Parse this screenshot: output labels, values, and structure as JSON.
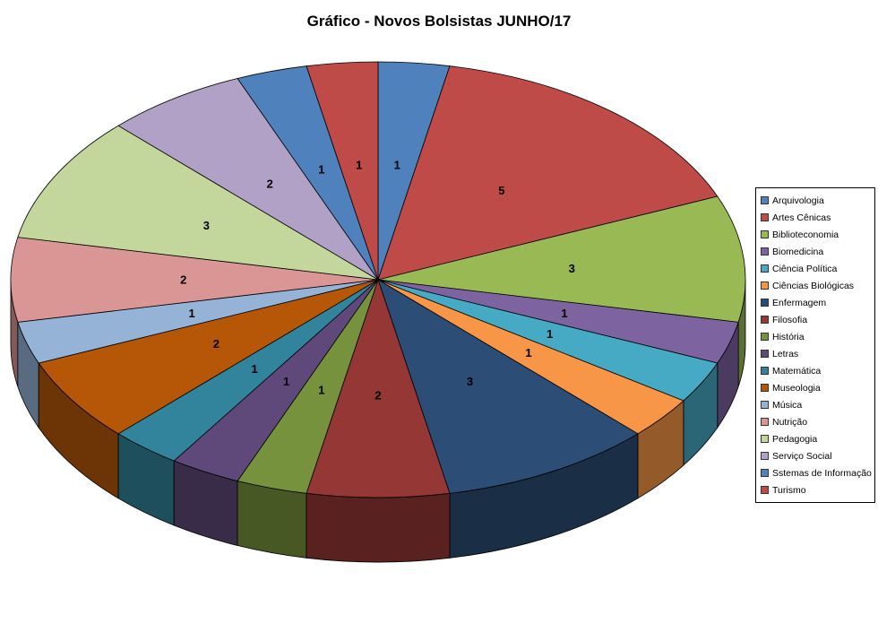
{
  "title": "Gráfico - Novos Bolsistas JUNHO/17",
  "chart_data": {
    "type": "pie",
    "title": "Gráfico - Novos Bolsistas JUNHO/17",
    "effect": "3d",
    "legend_position": "right",
    "start_angle_deg": 0,
    "direction": "clockwise",
    "data_labels": "values",
    "total": 32,
    "categories": [
      "Arquivologia",
      "Artes Cênicas",
      "Biblioteconomia",
      "Biomedicina",
      "Ciência Política",
      "Ciências Biológicas",
      "Enfermagem",
      "Filosofia",
      "História",
      "Letras",
      "Matemática",
      "Museologia",
      "Música",
      "Nutrição",
      "Pedagogia",
      "Serviço Social",
      "Sstemas de Informação",
      "Turismo"
    ],
    "values": [
      1,
      5,
      3,
      1,
      1,
      1,
      3,
      2,
      1,
      1,
      1,
      2,
      1,
      2,
      3,
      2,
      1,
      1
    ],
    "colors": [
      "#4F81BD",
      "#BE4B48",
      "#98B954",
      "#7E63A1",
      "#46AAC5",
      "#F79646",
      "#2C4D75",
      "#953734",
      "#76923C",
      "#5F497A",
      "#31849B",
      "#B65708",
      "#95B3D7",
      "#D99694",
      "#C3D69B",
      "#B2A1C7",
      "#4F81BD",
      "#BE4B48"
    ]
  }
}
